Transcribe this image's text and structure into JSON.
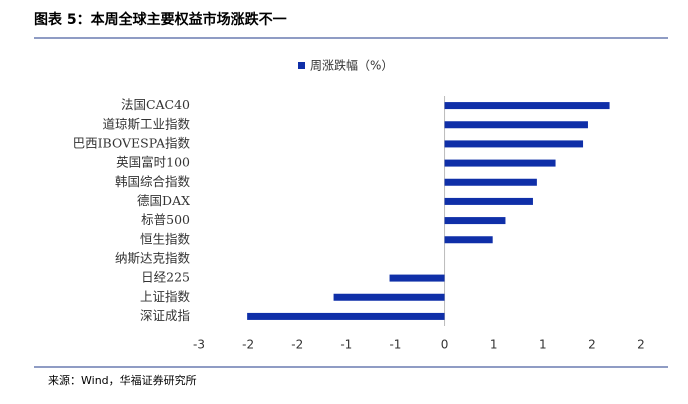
{
  "chart_data": {
    "type": "hbar",
    "title": "图表 5：本周全球主要权益市场涨跌不一",
    "categories": [
      "法国CAC40",
      "道琼斯工业指数",
      "巴西IBOVESPA指数",
      "英国富时100",
      "韩国综合指数",
      "德国DAX",
      "标普500",
      "恒生指数",
      "纳斯达克指数",
      "日经225",
      "上证指数",
      "深证成指"
    ],
    "series": [
      {
        "name": "周涨跌幅（%）",
        "color": "#0f2fa8",
        "values": [
          1.68,
          1.46,
          1.41,
          1.13,
          0.94,
          0.9,
          0.62,
          0.49,
          0,
          -0.56,
          -1.13,
          -2.01
        ]
      }
    ],
    "xlim": [
      -2.5,
      2
    ],
    "xticks": [
      {
        "value": -2.5,
        "label": "-3"
      },
      -2,
      {
        "value": -1.5,
        "label": "-2"
      },
      -1,
      {
        "value": -0.5,
        "label": "-1"
      },
      0,
      {
        "value": 0.5,
        "label": "1"
      },
      1,
      {
        "value": 1.5,
        "label": "2"
      },
      2
    ],
    "source": "来源：Wind，华福证券研究所"
  }
}
